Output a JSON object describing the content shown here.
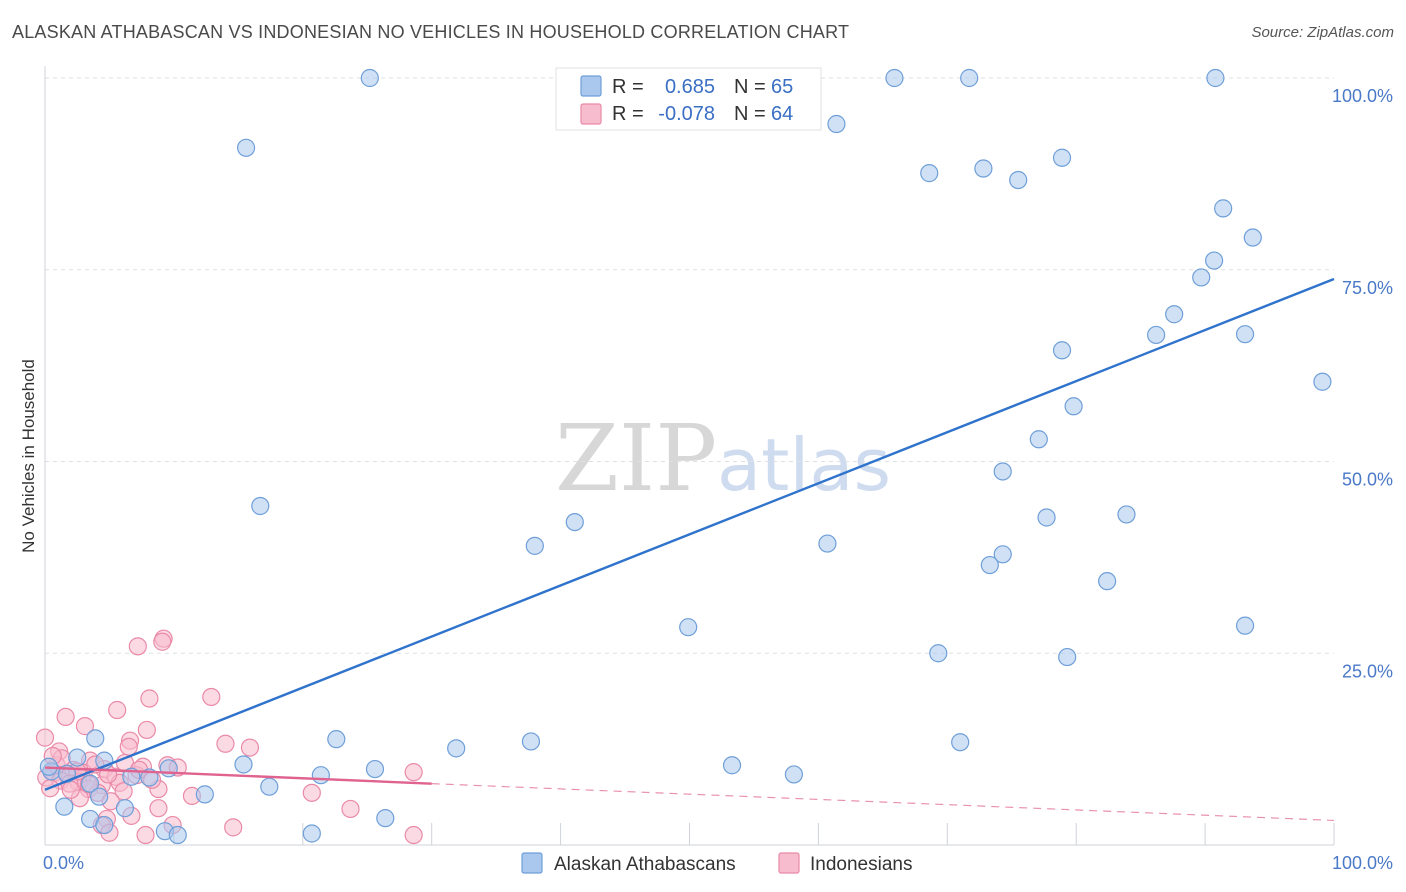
{
  "title": "ALASKAN ATHABASCAN VS INDONESIAN NO VEHICLES IN HOUSEHOLD CORRELATION CHART",
  "source": "Source: ZipAtlas.com",
  "watermark": {
    "zip": "ZIP",
    "atlas": "atlas"
  },
  "colors": {
    "blue_fill": "#aac8ee",
    "blue_stroke": "#6f9fd8",
    "blue_line": "#2f73cc",
    "pink_fill": "#f7bccd",
    "pink_stroke": "#ea8aa8",
    "pink_line": "#e0628f",
    "grid": "#dde1e6",
    "axis_text": "#4a79c8"
  },
  "legend": {
    "r_label": "R =",
    "n_label": "N =",
    "series": [
      {
        "name": "Alaskan Athabascans",
        "r": "0.685",
        "n": "65"
      },
      {
        "name": "Indonesians",
        "r": "-0.078",
        "n": "64"
      }
    ]
  },
  "chart_data": {
    "type": "scatter",
    "title": "ALASKAN ATHABASCAN VS INDONESIAN NO VEHICLES IN HOUSEHOLD CORRELATION CHART",
    "xlabel": "",
    "ylabel": "No Vehicles in Household",
    "xlim": [
      0,
      100
    ],
    "ylim": [
      0,
      100
    ],
    "x_tick_labels": [
      "0.0%",
      "100.0%"
    ],
    "y_tick_values": [
      25,
      50,
      75,
      100
    ],
    "y_tick_labels": [
      "25.0%",
      "50.0%",
      "75.0%",
      "100.0%"
    ],
    "grid": true,
    "series": [
      {
        "name": "Alaskan Athabascans",
        "r": 0.685,
        "n": 65,
        "trend": {
          "x": [
            0,
            100
          ],
          "y": [
            7.2,
            73.8
          ],
          "dashed_to": null
        },
        "points": [
          [
            25.2,
            100
          ],
          [
            65.9,
            100
          ],
          [
            71.7,
            100
          ],
          [
            90.8,
            100
          ],
          [
            15.6,
            90.9
          ],
          [
            61.4,
            94
          ],
          [
            68.6,
            87.6
          ],
          [
            72.8,
            88.2
          ],
          [
            75.5,
            86.7
          ],
          [
            78.9,
            89.6
          ],
          [
            91.4,
            83
          ],
          [
            90.7,
            76.2
          ],
          [
            89.7,
            74
          ],
          [
            93.7,
            79.2
          ],
          [
            87.6,
            69.2
          ],
          [
            86.2,
            66.5
          ],
          [
            93.1,
            66.6
          ],
          [
            99.1,
            60.4
          ],
          [
            78.9,
            64.5
          ],
          [
            79.8,
            57.2
          ],
          [
            77.1,
            52.9
          ],
          [
            74.3,
            48.7
          ],
          [
            77.7,
            42.7
          ],
          [
            83.9,
            43.1
          ],
          [
            16.7,
            44.2
          ],
          [
            41.1,
            42.1
          ],
          [
            38,
            39
          ],
          [
            60.7,
            39.3
          ],
          [
            74.3,
            37.9
          ],
          [
            73.3,
            36.5
          ],
          [
            82.4,
            34.4
          ],
          [
            93.1,
            28.6
          ],
          [
            49.9,
            28.4
          ],
          [
            69.3,
            25
          ],
          [
            79.3,
            24.5
          ],
          [
            3.9,
            13.9
          ],
          [
            22.6,
            13.8
          ],
          [
            31.9,
            12.6
          ],
          [
            37.7,
            13.5
          ],
          [
            71,
            13.4
          ],
          [
            2.5,
            11.4
          ],
          [
            4.6,
            11
          ],
          [
            15.4,
            10.5
          ],
          [
            25.6,
            9.9
          ],
          [
            53.3,
            10.4
          ],
          [
            9.6,
            10
          ],
          [
            21.4,
            9.1
          ],
          [
            58.1,
            9.2
          ],
          [
            6.7,
            8.9
          ],
          [
            0.5,
            9.6
          ],
          [
            1.7,
            9.3
          ],
          [
            3.5,
            8
          ],
          [
            8.1,
            8.8
          ],
          [
            17.4,
            7.6
          ],
          [
            12.4,
            6.6
          ],
          [
            4.2,
            6.3
          ],
          [
            1.5,
            5
          ],
          [
            6.2,
            4.8
          ],
          [
            26.4,
            3.5
          ],
          [
            3.5,
            3.4
          ],
          [
            4.6,
            2.6
          ],
          [
            9.3,
            1.8
          ],
          [
            10.3,
            1.3
          ],
          [
            20.7,
            1.5
          ],
          [
            0.3,
            10.2
          ]
        ]
      },
      {
        "name": "Indonesians",
        "r": -0.078,
        "n": 64,
        "trend": {
          "x": [
            0,
            30
          ],
          "y": [
            10.1,
            8
          ],
          "dashed_to": [
            100,
            3.2
          ]
        },
        "points": [
          [
            9.2,
            26.9
          ],
          [
            9.1,
            26.5
          ],
          [
            7.2,
            25.9
          ],
          [
            12.9,
            19.3
          ],
          [
            8.1,
            19.1
          ],
          [
            5.6,
            17.6
          ],
          [
            1.6,
            16.7
          ],
          [
            3.1,
            15.5
          ],
          [
            0,
            14
          ],
          [
            7.9,
            15
          ],
          [
            6.6,
            13.6
          ],
          [
            6.5,
            12.8
          ],
          [
            14,
            13.2
          ],
          [
            1.1,
            12.2
          ],
          [
            3.5,
            11
          ],
          [
            9.5,
            10.4
          ],
          [
            7.6,
            10.2
          ],
          [
            4.6,
            9.9
          ],
          [
            2.2,
            9.8
          ],
          [
            3,
            9.4
          ],
          [
            1.7,
            9.2
          ],
          [
            0.7,
            9.4
          ],
          [
            2.9,
            8.7
          ],
          [
            5.5,
            8.9
          ],
          [
            7.1,
            9.1
          ],
          [
            0.1,
            8.8
          ],
          [
            1.2,
            8.4
          ],
          [
            2.6,
            8.2
          ],
          [
            4.4,
            7.8
          ],
          [
            5.8,
            8.1
          ],
          [
            0.4,
            7.4
          ],
          [
            3.4,
            7.3
          ],
          [
            4.1,
            6.8
          ],
          [
            6.1,
            7
          ],
          [
            8.8,
            7.3
          ],
          [
            2.7,
            6.1
          ],
          [
            5.1,
            5.7
          ],
          [
            8.8,
            4.8
          ],
          [
            11.4,
            6.4
          ],
          [
            20.7,
            6.8
          ],
          [
            23.7,
            4.7
          ],
          [
            28.6,
            9.5
          ],
          [
            10.3,
            10.1
          ],
          [
            15.9,
            12.7
          ],
          [
            4.8,
            3.4
          ],
          [
            4.4,
            2.6
          ],
          [
            6.7,
            3.8
          ],
          [
            14.6,
            2.3
          ],
          [
            7.8,
            1.3
          ],
          [
            5,
            1.6
          ],
          [
            9.9,
            2.6
          ],
          [
            28.6,
            1.3
          ],
          [
            3.4,
            7.9
          ],
          [
            2.5,
            9.6
          ],
          [
            0.9,
            10.4
          ],
          [
            6.2,
            10.7
          ],
          [
            1.3,
            11.3
          ],
          [
            4.9,
            9.2
          ],
          [
            8.3,
            8.5
          ],
          [
            1.9,
            8
          ],
          [
            0.6,
            11.6
          ],
          [
            3.9,
            10.5
          ],
          [
            2,
            7.2
          ],
          [
            7.3,
            9.8
          ]
        ]
      }
    ]
  }
}
